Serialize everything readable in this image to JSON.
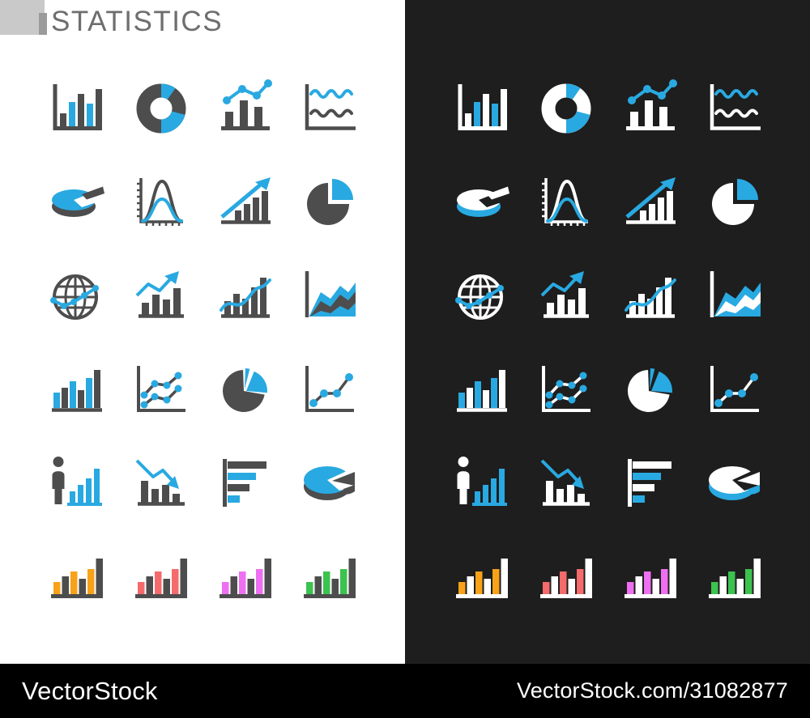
{
  "title": "STATISTICS",
  "watermark": {
    "brand": "VectorStock",
    "url": "VectorStock.com/31082877"
  },
  "colors": {
    "accent": "#29a9e1",
    "base_light": "#4d4d4d",
    "base_dark": "#ffffff",
    "light_bg": "#ffffff",
    "dark_bg": "#1e1e1e",
    "footer_bg": "#000000",
    "title_text": "#6e6e6e",
    "title_square": "#c9c9c9",
    "title_tick": "#9b9b9b"
  },
  "panels": [
    {
      "key": "light",
      "name": "light-theme"
    },
    {
      "key": "dark",
      "name": "dark-theme"
    }
  ],
  "icons": [
    {
      "id": "vertical-bar-chart",
      "shape": "bar-chart"
    },
    {
      "id": "donut-chart",
      "shape": "donut-chart"
    },
    {
      "id": "line-over-bars-chart",
      "shape": "bar-line-chart"
    },
    {
      "id": "wave-line-chart",
      "shape": "wave-chart"
    },
    {
      "id": "pie-3d",
      "shape": "pie-3d"
    },
    {
      "id": "bell-curve",
      "shape": "bell-curve"
    },
    {
      "id": "growth-arrow-bars",
      "shape": "growth-arrow"
    },
    {
      "id": "quarter-pie",
      "shape": "pie-quarter"
    },
    {
      "id": "globe-analytics",
      "shape": "globe"
    },
    {
      "id": "trend-arrow-bars",
      "shape": "bars-arrow-up"
    },
    {
      "id": "curve-through-bars",
      "shape": "bars-curve"
    },
    {
      "id": "stacked-area-chart",
      "shape": "area-chart"
    },
    {
      "id": "ascending-bars",
      "shape": "bars-ascending"
    },
    {
      "id": "double-line-dots",
      "shape": "multi-line-dots"
    },
    {
      "id": "pie-with-slices",
      "shape": "pie-slices"
    },
    {
      "id": "dot-line-chart",
      "shape": "scatter-line"
    },
    {
      "id": "person-with-bars",
      "shape": "person-bars"
    },
    {
      "id": "declining-bars-arrow",
      "shape": "bars-arrow-down"
    },
    {
      "id": "horizontal-bars",
      "shape": "hbar-chart"
    },
    {
      "id": "pie-3d-pulled-slice",
      "shape": "pie-3d-slice"
    },
    {
      "id": "orange-bar-chart",
      "shape": "colored-bars",
      "color": "#f7a219"
    },
    {
      "id": "red-bar-chart",
      "shape": "colored-bars",
      "color": "#f56a6b"
    },
    {
      "id": "magenta-bar-chart",
      "shape": "colored-bars",
      "color": "#ee6ff2"
    },
    {
      "id": "green-bar-chart",
      "shape": "colored-bars",
      "color": "#3cc24f"
    }
  ]
}
